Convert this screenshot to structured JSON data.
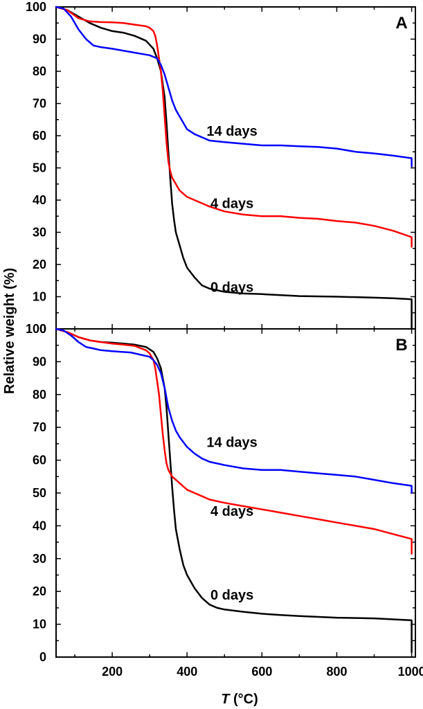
{
  "chart_data": [
    {
      "type": "line",
      "panel_label": "A",
      "xlim": [
        50,
        1010
      ],
      "ylim": [
        0,
        100
      ],
      "xticks": [
        200,
        400,
        600,
        800,
        1000
      ],
      "yticks": [
        0,
        10,
        20,
        30,
        40,
        50,
        60,
        70,
        80,
        90,
        100
      ],
      "series": [
        {
          "name": "0 days",
          "color": "#000000",
          "label_pos": [
            520,
            13
          ],
          "x": [
            50,
            80,
            110,
            140,
            170,
            200,
            230,
            260,
            290,
            310,
            320,
            330,
            340,
            345,
            350,
            355,
            360,
            365,
            370,
            380,
            390,
            400,
            420,
            440,
            460,
            480,
            500,
            550,
            600,
            650,
            700,
            800,
            900,
            950,
            1000,
            1000
          ],
          "y": [
            100,
            99,
            97,
            95,
            93.5,
            92.5,
            92,
            91,
            89.5,
            87,
            84,
            80,
            72,
            64,
            55,
            47,
            39,
            34,
            30,
            26,
            22,
            19,
            16,
            13.5,
            12.5,
            12,
            11.5,
            11,
            10.8,
            10.5,
            10.2,
            10,
            9.7,
            9.5,
            9.2,
            0
          ]
        },
        {
          "name": "4 days",
          "color": "#ff0000",
          "label_pos": [
            520,
            39
          ],
          "x": [
            50,
            80,
            110,
            140,
            170,
            200,
            230,
            260,
            290,
            300,
            310,
            315,
            320,
            325,
            330,
            335,
            340,
            345,
            350,
            355,
            360,
            370,
            380,
            400,
            420,
            440,
            460,
            500,
            550,
            600,
            650,
            700,
            750,
            800,
            850,
            900,
            950,
            1000,
            1000
          ],
          "y": [
            100,
            99,
            96.5,
            95.5,
            95.3,
            95.2,
            95,
            94.5,
            94,
            93.5,
            92.5,
            91,
            88,
            84,
            80,
            74,
            66,
            58,
            52,
            49,
            47,
            45,
            43,
            41,
            40,
            39,
            38,
            36.5,
            35.5,
            35,
            35,
            34.5,
            34.2,
            33.5,
            33,
            32,
            30.5,
            28.5,
            25.5
          ]
        },
        {
          "name": "14 days",
          "color": "#0000ff",
          "label_pos": [
            520,
            61.5
          ],
          "x": [
            50,
            70,
            90,
            110,
            130,
            150,
            170,
            200,
            250,
            300,
            320,
            330,
            340,
            350,
            360,
            370,
            380,
            390,
            400,
            420,
            440,
            460,
            500,
            550,
            600,
            650,
            700,
            750,
            800,
            850,
            900,
            950,
            1000,
            1000
          ],
          "y": [
            100,
            99.5,
            97,
            93,
            90,
            88,
            87.5,
            87,
            86,
            85,
            84,
            82,
            79,
            75,
            71,
            68,
            66,
            64,
            62,
            60.5,
            59.5,
            58.5,
            58,
            57.5,
            57,
            57,
            56.7,
            56.5,
            56,
            55,
            54.5,
            53.8,
            53,
            50.5
          ]
        }
      ]
    },
    {
      "type": "line",
      "panel_label": "B",
      "xlim": [
        50,
        1010
      ],
      "ylim": [
        0,
        100
      ],
      "xticks": [
        200,
        400,
        600,
        800,
        1000
      ],
      "yticks": [
        0,
        10,
        20,
        30,
        40,
        50,
        60,
        70,
        80,
        90,
        100
      ],
      "series": [
        {
          "name": "0 days",
          "color": "#000000",
          "label_pos": [
            520,
            19
          ],
          "x": [
            50,
            80,
            110,
            140,
            170,
            200,
            230,
            260,
            290,
            310,
            320,
            330,
            340,
            345,
            350,
            355,
            360,
            365,
            370,
            380,
            390,
            400,
            420,
            440,
            460,
            480,
            500,
            550,
            600,
            650,
            700,
            800,
            900,
            950,
            1000,
            1000
          ],
          "y": [
            100,
            99,
            97.5,
            96.5,
            96,
            95.8,
            95.5,
            95.2,
            94.5,
            93,
            91,
            88,
            82,
            76,
            68,
            60,
            52,
            45,
            39,
            33,
            28,
            25,
            21,
            18,
            16,
            15,
            14.5,
            13.8,
            13.2,
            12.8,
            12.5,
            12,
            11.8,
            11.5,
            11.2,
            1.5
          ]
        },
        {
          "name": "4 days",
          "color": "#ff0000",
          "label_pos": [
            520,
            44.5
          ],
          "x": [
            50,
            80,
            110,
            140,
            170,
            200,
            230,
            260,
            290,
            300,
            310,
            315,
            320,
            325,
            330,
            335,
            340,
            345,
            350,
            355,
            360,
            370,
            380,
            400,
            420,
            440,
            460,
            500,
            550,
            600,
            650,
            700,
            750,
            800,
            850,
            900,
            950,
            1000,
            1000
          ],
          "y": [
            100,
            99,
            97.5,
            96.5,
            96,
            95.5,
            95.2,
            94.8,
            93.5,
            92.5,
            90.5,
            88,
            84,
            80,
            74,
            68,
            63,
            59,
            57,
            56,
            55,
            54,
            53,
            51,
            50,
            49,
            48,
            47,
            46,
            45,
            44,
            43,
            42,
            41,
            40,
            39,
            37.5,
            36,
            31.5
          ]
        },
        {
          "name": "14 days",
          "color": "#0000ff",
          "label_pos": [
            520,
            65.5
          ],
          "x": [
            50,
            70,
            90,
            110,
            130,
            150,
            170,
            200,
            250,
            300,
            310,
            320,
            330,
            340,
            350,
            360,
            370,
            380,
            390,
            400,
            420,
            440,
            460,
            500,
            550,
            600,
            650,
            700,
            750,
            800,
            850,
            900,
            950,
            1000,
            1000
          ],
          "y": [
            100,
            99.5,
            98,
            96,
            94.5,
            94,
            93.5,
            93.2,
            92.8,
            91.5,
            90.5,
            89,
            86.5,
            82,
            76,
            72,
            69,
            67,
            65.5,
            64,
            62,
            60.5,
            59.5,
            58.5,
            57.5,
            57,
            57,
            56.5,
            56,
            55.5,
            55,
            54,
            53,
            52.2,
            50
          ]
        }
      ]
    }
  ],
  "axes": {
    "xlabel_italic": "T",
    "xlabel_rest": " (°C)",
    "ylabel": "Relative weight (%)"
  }
}
